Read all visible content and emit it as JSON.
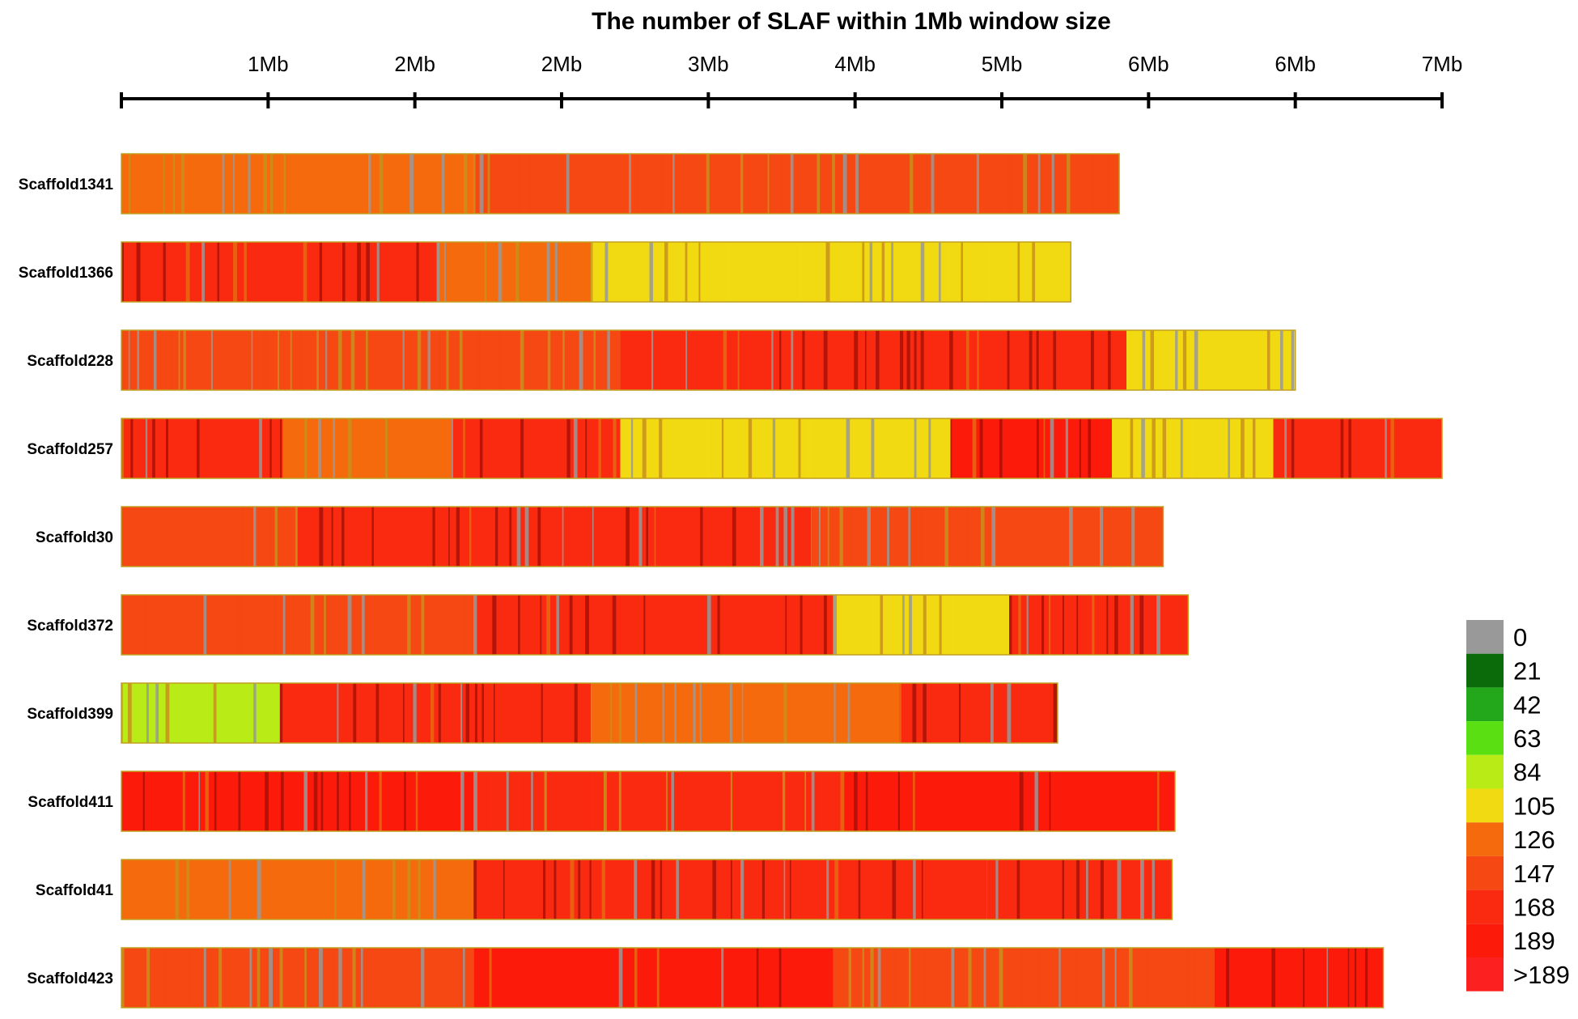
{
  "chart_data": {
    "type": "heatmap",
    "title": "The number of SLAF within 1Mb window size",
    "x_axis": {
      "ticks": [
        {
          "value": 1,
          "label": "1Mb"
        },
        {
          "value": 2,
          "label": "2Mb"
        },
        {
          "value": 3,
          "label": "2Mb"
        },
        {
          "value": 4,
          "label": "3Mb"
        },
        {
          "value": 5,
          "label": "4Mb"
        },
        {
          "value": 6,
          "label": "5Mb"
        },
        {
          "value": 7,
          "label": "6Mb"
        },
        {
          "value": 8,
          "label": "6Mb"
        },
        {
          "value": 9,
          "label": "7Mb"
        }
      ],
      "range": [
        0,
        9
      ]
    },
    "scaffolds": [
      {
        "name": "Scaffold1341",
        "length": 6.8,
        "segments": [
          {
            "start": 0,
            "end": 2.4,
            "level": 126,
            "texture": "mixed"
          },
          {
            "start": 2.4,
            "end": 6.8,
            "level": 147,
            "texture": "mixed"
          }
        ]
      },
      {
        "name": "Scaffold1366",
        "length": 6.47,
        "segments": [
          {
            "start": 0,
            "end": 2.15,
            "level": 168,
            "texture": "stripes"
          },
          {
            "start": 2.15,
            "end": 3.2,
            "level": 126,
            "texture": "mixed"
          },
          {
            "start": 3.2,
            "end": 6.47,
            "level": 105,
            "texture": "mixed"
          }
        ]
      },
      {
        "name": "Scaffold228",
        "length": 8.0,
        "segments": [
          {
            "start": 0,
            "end": 3.4,
            "level": 147,
            "texture": "mixed"
          },
          {
            "start": 3.4,
            "end": 6.85,
            "level": 168,
            "texture": "stripes"
          },
          {
            "start": 6.85,
            "end": 8.0,
            "level": 105,
            "texture": "mixed"
          }
        ]
      },
      {
        "name": "Scaffold257",
        "length": 9.0,
        "segments": [
          {
            "start": 0,
            "end": 1.1,
            "level": 168,
            "texture": "stripes"
          },
          {
            "start": 1.1,
            "end": 2.25,
            "level": 126,
            "texture": "mixed"
          },
          {
            "start": 2.25,
            "end": 3.4,
            "level": 168,
            "texture": "stripes"
          },
          {
            "start": 3.4,
            "end": 5.65,
            "level": 105,
            "texture": "mixed"
          },
          {
            "start": 5.65,
            "end": 6.75,
            "level": 189,
            "texture": "stripes"
          },
          {
            "start": 6.75,
            "end": 7.85,
            "level": 105,
            "texture": "mixed"
          },
          {
            "start": 7.85,
            "end": 9.0,
            "level": 168,
            "texture": "stripes"
          }
        ]
      },
      {
        "name": "Scaffold30",
        "length": 7.1,
        "segments": [
          {
            "start": 0,
            "end": 1.2,
            "level": 147,
            "texture": "mixed"
          },
          {
            "start": 1.2,
            "end": 4.7,
            "level": 168,
            "texture": "stripes"
          },
          {
            "start": 4.7,
            "end": 7.1,
            "level": 147,
            "texture": "mixed"
          }
        ]
      },
      {
        "name": "Scaffold372",
        "length": 7.27,
        "segments": [
          {
            "start": 0,
            "end": 2.4,
            "level": 147,
            "texture": "mixed"
          },
          {
            "start": 2.4,
            "end": 4.85,
            "level": 168,
            "texture": "stripes"
          },
          {
            "start": 4.85,
            "end": 6.05,
            "level": 105,
            "texture": "mixed"
          },
          {
            "start": 6.05,
            "end": 7.27,
            "level": 168,
            "texture": "stripes"
          }
        ]
      },
      {
        "name": "Scaffold399",
        "length": 6.38,
        "segments": [
          {
            "start": 0,
            "end": 1.08,
            "level": 84,
            "texture": "mixed"
          },
          {
            "start": 1.08,
            "end": 3.2,
            "level": 168,
            "texture": "stripes"
          },
          {
            "start": 3.2,
            "end": 5.3,
            "level": 126,
            "texture": "mixed"
          },
          {
            "start": 5.3,
            "end": 6.38,
            "level": 168,
            "texture": "stripes"
          }
        ]
      },
      {
        "name": "Scaffold411",
        "length": 7.18,
        "segments": [
          {
            "start": 0,
            "end": 2.4,
            "level": 189,
            "texture": "stripes"
          },
          {
            "start": 2.4,
            "end": 4.9,
            "level": 168,
            "texture": "mixed"
          },
          {
            "start": 4.9,
            "end": 7.18,
            "level": 189,
            "texture": "stripes"
          }
        ]
      },
      {
        "name": "Scaffold41",
        "length": 7.16,
        "segments": [
          {
            "start": 0,
            "end": 2.4,
            "level": 126,
            "texture": "mixed"
          },
          {
            "start": 2.4,
            "end": 5.9,
            "level": 168,
            "texture": "stripes"
          },
          {
            "start": 5.9,
            "end": 7.16,
            "level": 168,
            "texture": "stripes"
          }
        ]
      },
      {
        "name": "Scaffold423",
        "length": 8.6,
        "segments": [
          {
            "start": 0,
            "end": 2.4,
            "level": 147,
            "texture": "mixed"
          },
          {
            "start": 2.4,
            "end": 4.85,
            "level": 189,
            "texture": "stripes"
          },
          {
            "start": 4.85,
            "end": 7.45,
            "level": 147,
            "texture": "mixed"
          },
          {
            "start": 7.45,
            "end": 8.6,
            "level": 189,
            "texture": "stripes"
          }
        ]
      }
    ],
    "legend": {
      "placement": "bottom-right",
      "items": [
        {
          "label": "0",
          "color": "#999999"
        },
        {
          "label": "21",
          "color": "#0b6b0b"
        },
        {
          "label": "42",
          "color": "#22a81a"
        },
        {
          "label": "63",
          "color": "#5ae012"
        },
        {
          "label": "84",
          "color": "#b9ec16"
        },
        {
          "label": "105",
          "color": "#f2da12"
        },
        {
          "label": "126",
          "color": "#f56a0c"
        },
        {
          "label": "147",
          "color": "#f54812"
        },
        {
          "label": "168",
          "color": "#fa2a10"
        },
        {
          "label": "189",
          "color": "#fc1a0a"
        },
        {
          "label": ">189",
          "color": "#fc2020"
        }
      ]
    }
  }
}
